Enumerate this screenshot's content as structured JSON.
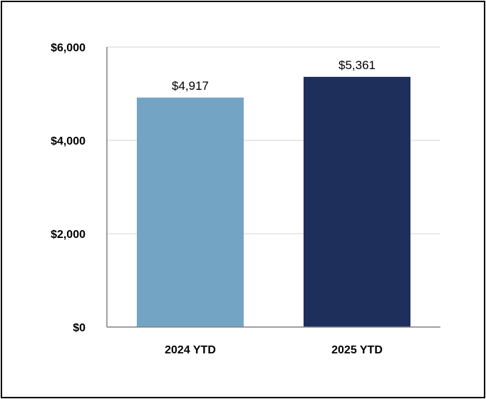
{
  "chart_data": {
    "type": "bar",
    "title": "",
    "xlabel": "",
    "ylabel": "",
    "categories": [
      "2024 YTD",
      "2025 YTD"
    ],
    "values": [
      4917,
      5361
    ],
    "data_labels": [
      "$4,917",
      "$5,361"
    ],
    "bar_colors": [
      "#74a4c4",
      "#1e2f5c"
    ],
    "ylim": [
      0,
      6000
    ],
    "y_ticks": [
      0,
      2000,
      4000,
      6000
    ],
    "y_tick_labels": [
      "$0",
      "$2,000",
      "$4,000",
      "$6,000"
    ],
    "grid": true,
    "legend": "none"
  }
}
